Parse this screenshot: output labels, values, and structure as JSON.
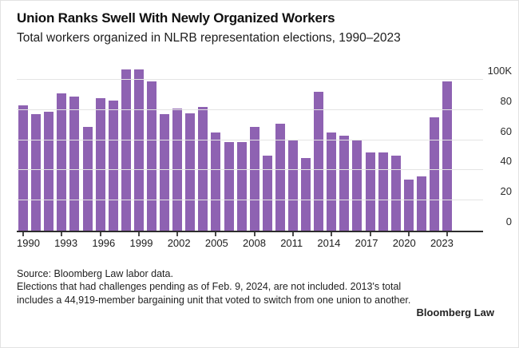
{
  "header": {
    "title": "Union Ranks Swell With Newly Organized Workers",
    "subtitle": "Total workers organized in NLRB representation elections, 1990–2023"
  },
  "chart_data": {
    "type": "bar",
    "title": "Union Ranks Swell With Newly Organized Workers",
    "subtitle": "Total workers organized in NLRB representation elections, 1990–2023",
    "xlabel": "",
    "ylabel": "Workers organized (thousands)",
    "unit": "K",
    "categories": [
      "1990",
      "1991",
      "1992",
      "1993",
      "1994",
      "1995",
      "1996",
      "1997",
      "1998",
      "1999",
      "2000",
      "2001",
      "2002",
      "2003",
      "2004",
      "2005",
      "2006",
      "2007",
      "2008",
      "2009",
      "2010",
      "2011",
      "2012",
      "2013",
      "2014",
      "2015",
      "2016",
      "2017",
      "2018",
      "2019",
      "2020",
      "2021",
      "2022",
      "2023"
    ],
    "values": [
      83,
      77,
      79,
      91,
      89,
      69,
      88,
      86,
      107,
      107,
      99,
      77,
      81,
      78,
      82,
      65,
      59,
      59,
      69,
      50,
      71,
      60,
      48,
      92,
      65,
      63,
      60,
      52,
      52,
      50,
      34,
      36,
      75,
      99
    ],
    "x_tick_labels": [
      "1990",
      "1993",
      "1996",
      "1999",
      "2002",
      "2005",
      "2008",
      "2011",
      "2014",
      "2017",
      "2020",
      "2023"
    ],
    "y_ticks": [
      {
        "value": 0,
        "label": "0"
      },
      {
        "value": 20,
        "label": "20"
      },
      {
        "value": 40,
        "label": "40"
      },
      {
        "value": 60,
        "label": "60"
      },
      {
        "value": 80,
        "label": "80"
      },
      {
        "value": 100,
        "label": "100K"
      }
    ],
    "ylim": [
      0,
      111
    ],
    "grid": true,
    "legend": "none",
    "bar_color": "#8e62b2",
    "gridline_color": "#e4e4e4",
    "axis_color": "#2d2d2d"
  },
  "footer": {
    "source_line": "Source: Bloomberg Law labor data.",
    "note": "Elections that had challenges pending as of Feb. 9, 2024, are not included. 2013's total includes a 44,919-member bargaining unit that voted to switch from one union to another.",
    "brand": "Bloomberg Law"
  }
}
